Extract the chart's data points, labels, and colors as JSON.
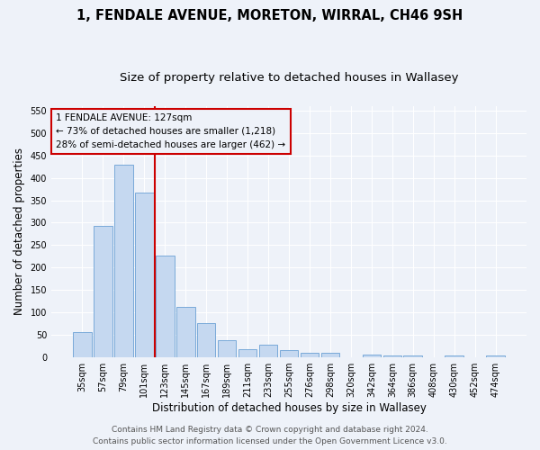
{
  "title": "1, FENDALE AVENUE, MORETON, WIRRAL, CH46 9SH",
  "subtitle": "Size of property relative to detached houses in Wallasey",
  "xlabel": "Distribution of detached houses by size in Wallasey",
  "ylabel": "Number of detached properties",
  "bar_labels": [
    "35sqm",
    "57sqm",
    "79sqm",
    "101sqm",
    "123sqm",
    "145sqm",
    "167sqm",
    "189sqm",
    "211sqm",
    "233sqm",
    "255sqm",
    "276sqm",
    "298sqm",
    "320sqm",
    "342sqm",
    "364sqm",
    "386sqm",
    "408sqm",
    "430sqm",
    "452sqm",
    "474sqm"
  ],
  "bar_values": [
    57,
    293,
    430,
    368,
    226,
    113,
    76,
    38,
    18,
    29,
    16,
    10,
    10,
    0,
    7,
    5,
    5,
    0,
    5,
    0,
    4
  ],
  "bar_color": "#c5d8f0",
  "bar_edge_color": "#6aa0d4",
  "vline_x_index": 3.5,
  "vline_color": "#cc0000",
  "annotation_title": "1 FENDALE AVENUE: 127sqm",
  "annotation_line1": "← 73% of detached houses are smaller (1,218)",
  "annotation_line2": "28% of semi-detached houses are larger (462) →",
  "ylim": [
    0,
    560
  ],
  "yticks": [
    0,
    50,
    100,
    150,
    200,
    250,
    300,
    350,
    400,
    450,
    500,
    550
  ],
  "footer_line1": "Contains HM Land Registry data © Crown copyright and database right 2024.",
  "footer_line2": "Contains public sector information licensed under the Open Government Licence v3.0.",
  "bg_color": "#eef2f9",
  "grid_color": "#ffffff",
  "title_fontsize": 10.5,
  "subtitle_fontsize": 9.5,
  "axis_label_fontsize": 8.5,
  "tick_fontsize": 7,
  "annotation_fontsize": 7.5,
  "footer_fontsize": 6.5
}
